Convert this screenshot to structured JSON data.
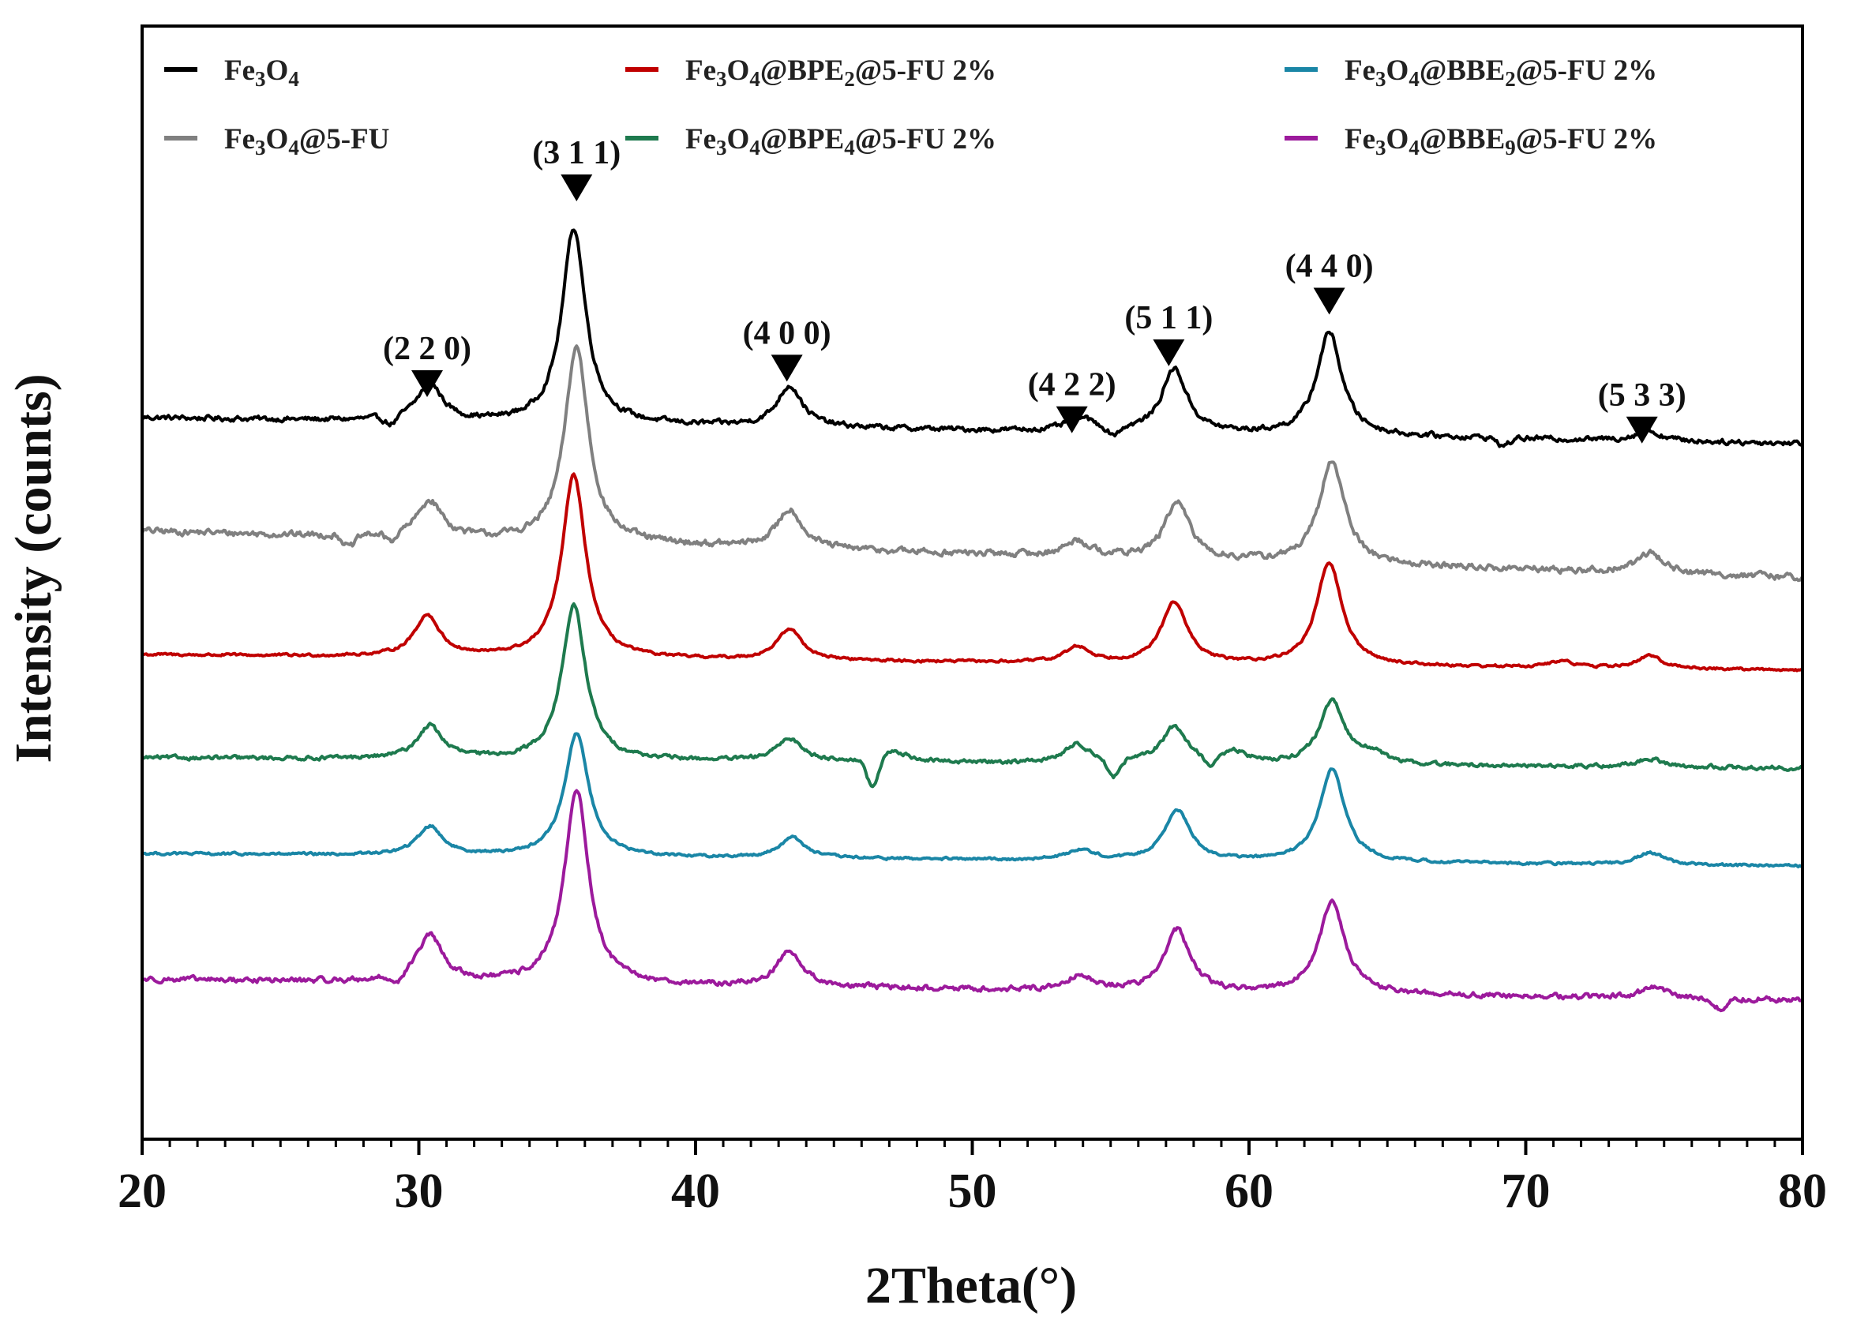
{
  "chart_data": {
    "type": "line",
    "title": "",
    "xlabel": "2Theta(°)",
    "ylabel": "Intensity (counts)",
    "xlim": [
      20,
      80
    ],
    "xticks": [
      20,
      30,
      40,
      50,
      60,
      70,
      80
    ],
    "ylim": [
      0,
      1.08
    ],
    "yticks_shown": false,
    "grid": false,
    "legend_position": "top, three columns",
    "series": [
      {
        "name": "Fe3O4",
        "legend": {
          "base": "Fe",
          "s1": "3",
          "mid": "O",
          "s2": "4",
          "rest": ""
        },
        "color": "#000000",
        "baseline": 0.7,
        "tail": 0.675,
        "peaks": [
          [
            30.4,
            0.036
          ],
          [
            35.6,
            0.19
          ],
          [
            43.4,
            0.04
          ],
          [
            53.9,
            0.013
          ],
          [
            57.3,
            0.062
          ],
          [
            62.9,
            0.1
          ],
          [
            74.4,
            0.01
          ]
        ],
        "dips": [
          [
            29.0,
            0.008
          ],
          [
            55.1,
            0.008
          ],
          [
            69.2,
            0.008
          ]
        ],
        "noise": 0.004
      },
      {
        "name": "Fe3O4@5-FU",
        "legend": {
          "base": "Fe",
          "s1": "3",
          "mid": "O",
          "s2": "4",
          "rest": "@5-FU"
        },
        "color": "#808080",
        "baseline": 0.59,
        "tail": 0.545,
        "peaks": [
          [
            30.4,
            0.036
          ],
          [
            35.7,
            0.19
          ],
          [
            43.4,
            0.038
          ],
          [
            53.8,
            0.015
          ],
          [
            57.4,
            0.055
          ],
          [
            63.0,
            0.1
          ],
          [
            74.5,
            0.02
          ]
        ],
        "dips": [
          [
            27.5,
            0.012
          ],
          [
            29.0,
            0.008
          ]
        ],
        "noise": 0.005
      },
      {
        "name": "Fe3O4@BPE2@5-FU 2%",
        "legend": {
          "base": "Fe",
          "s1": "3",
          "mid": "O",
          "s2": "4",
          "rest": "@BPE",
          "s3": "2",
          "tail": "@5-FU 2%"
        },
        "color": "#c00000",
        "baseline": 0.47,
        "tail": 0.455,
        "peaks": [
          [
            30.3,
            0.04
          ],
          [
            35.6,
            0.178
          ],
          [
            43.4,
            0.03
          ],
          [
            53.8,
            0.015
          ],
          [
            57.3,
            0.06
          ],
          [
            62.9,
            0.1
          ],
          [
            71.3,
            0.006
          ],
          [
            74.5,
            0.012
          ]
        ],
        "dips": [],
        "noise": 0.002
      },
      {
        "name": "Fe3O4@BPE4@5-FU 2%",
        "legend": {
          "base": "Fe",
          "s1": "3",
          "mid": "O",
          "s2": "4",
          "rest": "@BPE",
          "s3": "4",
          "tail": "@5-FU 2%"
        },
        "color": "#1e7a4e",
        "baseline": 0.37,
        "tail": 0.36,
        "peaks": [
          [
            30.4,
            0.032
          ],
          [
            35.6,
            0.15
          ],
          [
            43.4,
            0.022
          ],
          [
            47.2,
            0.01
          ],
          [
            53.8,
            0.018
          ],
          [
            57.3,
            0.035
          ],
          [
            59.5,
            0.01
          ],
          [
            63.0,
            0.06
          ],
          [
            64.4,
            0.01
          ],
          [
            74.5,
            0.008
          ]
        ],
        "dips": [
          [
            46.4,
            0.028
          ],
          [
            55.1,
            0.018
          ],
          [
            58.6,
            0.01
          ]
        ],
        "noise": 0.003
      },
      {
        "name": "Fe3O4@BBE2@5-FU 2%",
        "legend": {
          "base": "Fe",
          "s1": "3",
          "mid": "O",
          "s2": "4",
          "rest": "@BBE",
          "s3": "2",
          "tail": "@5-FU 2%"
        },
        "color": "#1a86a6",
        "baseline": 0.277,
        "tail": 0.265,
        "peaks": [
          [
            30.4,
            0.028
          ],
          [
            35.7,
            0.12
          ],
          [
            43.5,
            0.02
          ],
          [
            53.9,
            0.01
          ],
          [
            57.4,
            0.05
          ],
          [
            63.0,
            0.09
          ],
          [
            74.5,
            0.012
          ]
        ],
        "dips": [],
        "noise": 0.002
      },
      {
        "name": "Fe3O4@BBE9@5-FU 2%",
        "legend": {
          "base": "Fe",
          "s1": "3",
          "mid": "O",
          "s2": "4",
          "rest": "@BBE",
          "s3": "9",
          "tail": "@5-FU 2%"
        },
        "color": "#9c1a9c",
        "baseline": 0.155,
        "tail": 0.135,
        "peaks": [
          [
            30.4,
            0.045
          ],
          [
            35.7,
            0.19
          ],
          [
            43.4,
            0.035
          ],
          [
            53.9,
            0.015
          ],
          [
            57.4,
            0.06
          ],
          [
            63.0,
            0.09
          ],
          [
            74.6,
            0.01
          ]
        ],
        "dips": [
          [
            29.2,
            0.008
          ],
          [
            77.0,
            0.01
          ]
        ],
        "noise": 0.004
      }
    ],
    "annotations": [
      {
        "label": "(2 2 0)",
        "x": 30.3,
        "y": 0.72
      },
      {
        "label": "(3 1 1)",
        "x": 35.7,
        "y": 0.91
      },
      {
        "label": "(4 0 0)",
        "x": 43.3,
        "y": 0.735
      },
      {
        "label": "(4 2 2)",
        "x": 53.6,
        "y": 0.685
      },
      {
        "label": "(5 1 1)",
        "x": 57.1,
        "y": 0.75
      },
      {
        "label": "(4 4 0)",
        "x": 62.9,
        "y": 0.8
      },
      {
        "label": "(5 3 3)",
        "x": 74.2,
        "y": 0.675
      }
    ]
  }
}
